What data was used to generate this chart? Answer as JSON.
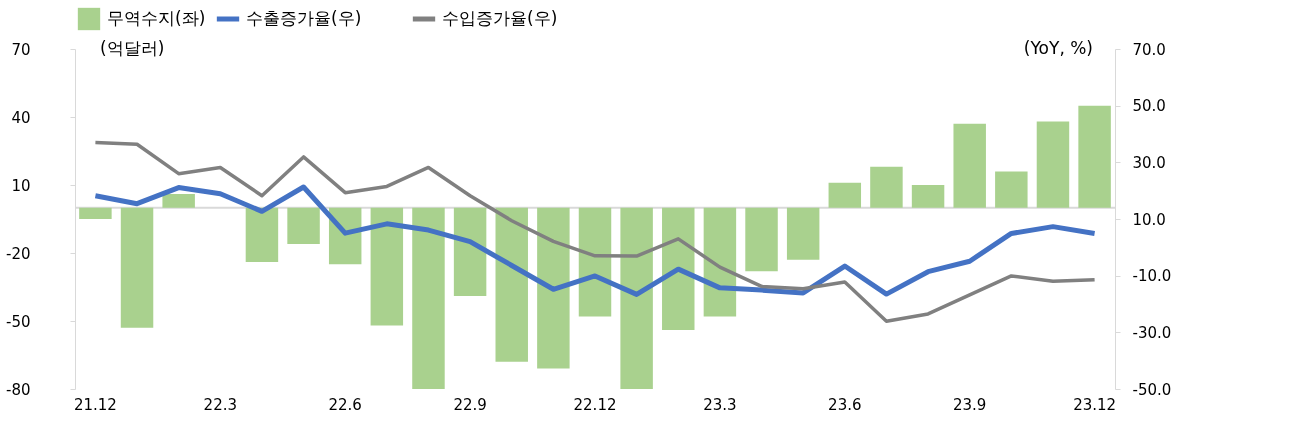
{
  "chart_data": {
    "type": "bar",
    "ylabel": "(억달러)",
    "y2label": "(YoY, %)",
    "categories": [
      "21.12",
      null,
      null,
      "22.3",
      null,
      null,
      "22.6",
      null,
      null,
      "22.9",
      null,
      null,
      "22.12",
      null,
      null,
      "23.3",
      null,
      null,
      "23.6",
      null,
      null,
      "23.9",
      null,
      null,
      "23.12"
    ],
    "series": [
      {
        "name": "무역수지(좌)",
        "color": "#a9d18e",
        "values": [
          -5,
          -53,
          6,
          0,
          -24,
          -16,
          -25,
          -52,
          -80,
          -39,
          -68,
          -71,
          -48,
          -80,
          -54,
          -48,
          -28,
          -23,
          11,
          18,
          10,
          37,
          16,
          38,
          45
        ]
      },
      {
        "name": "수출증가율(우)",
        "type": "line",
        "axis": "y2",
        "color": "#4472c4",
        "values": [
          18.2,
          15.4,
          21.1,
          18.9,
          12.7,
          21.3,
          5.0,
          8.3,
          6.1,
          2.0,
          -6.4,
          -14.8,
          -10.1,
          -16.6,
          -7.7,
          -14.3,
          -15.1,
          -16.1,
          -6.6,
          -16.5,
          -8.6,
          -4.9,
          4.9,
          7.3,
          4.9
        ]
      },
      {
        "name": "수입증가율(우)",
        "type": "line",
        "axis": "y2",
        "color": "#808080",
        "values": [
          37.0,
          36.4,
          26.0,
          28.2,
          18.2,
          31.9,
          19.3,
          21.5,
          28.2,
          18.2,
          9.4,
          2.1,
          -3.0,
          -3.1,
          3.0,
          -7.0,
          -13.8,
          -14.6,
          -12.2,
          -26.1,
          -23.5,
          -16.8,
          -10.1,
          -12.0,
          -11.4
        ]
      }
    ],
    "ylim": [
      -80,
      70
    ],
    "yticks": [
      -80,
      -50,
      -20,
      10,
      40,
      70
    ],
    "y2lim": [
      -50,
      70
    ],
    "y2ticks": [
      {
        "value": -50,
        "label": "-50.0"
      },
      {
        "value": -30,
        "label": "-30.0"
      },
      {
        "value": -10,
        "label": "-10.0"
      },
      {
        "value": 10,
        "label": "10.0"
      },
      {
        "value": 30,
        "label": "30.0"
      },
      {
        "value": 50,
        "label": "50.0"
      },
      {
        "value": 70,
        "label": "70.0"
      }
    ],
    "ref_lines": [
      {
        "axis": "y",
        "value": 0,
        "color": "#d9d9d9"
      }
    ],
    "legend": "top",
    "grid": false
  }
}
